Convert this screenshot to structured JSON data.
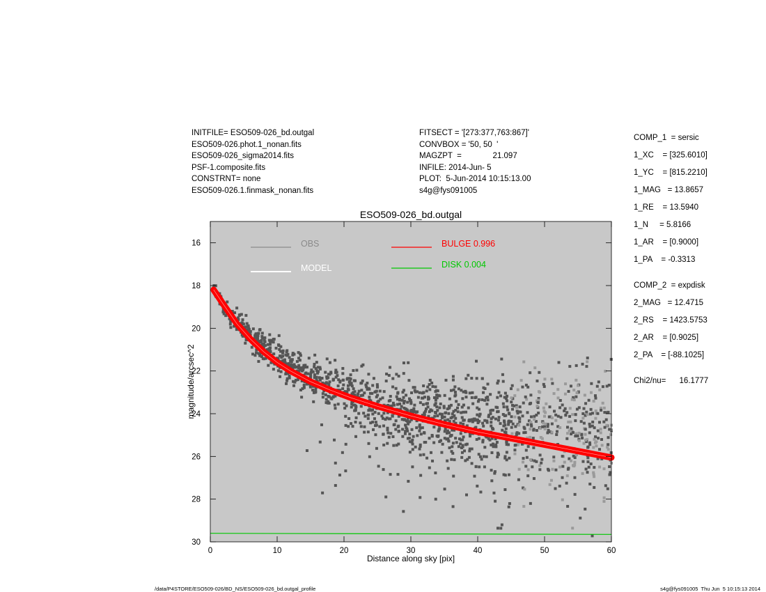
{
  "header_left": [
    "INITFILE= ESO509-026_bd.outgal",
    "ESO509-026.phot.1_nonan.fits",
    "ESO509-026_sigma2014.fits",
    "PSF-1.composite.fits",
    "CONSTRNT= none",
    "ESO509-026.1.finmask_nonan.fits"
  ],
  "header_mid": [
    "FITSECT = '[273:377,763:867]'",
    "CONVBOX = '50, 50  '",
    "MAGZPT  =              21.097",
    "INFILE: 2014-Jun- 5",
    "PLOT:  5-Jun-2014 10:15:13.00",
    "s4g@fys091005"
  ],
  "components": [
    "COMP_1  = sersic",
    "1_XC    = [325.6010]",
    "1_YC    = [815.2210]",
    "1_MAG   = 13.8657",
    "1_RE    = 13.5940",
    "1_N     = 5.8166",
    "1_AR    = [0.9000]",
    "1_PA    = -0.3313",
    "COMP_2  = expdisk",
    "2_MAG   = 12.4715",
    "2_RS    = 1423.5753",
    "2_AR    = [0.9025]",
    "2_PA    = [-88.1025]",
    "Chi2/nu=      16.1777"
  ],
  "footer": {
    "left": "/data/P4STORE/ESO509-026/BD_NS/ESO509-026_bd.outgal_profile",
    "right": "s4g@fys091005  Thu Jun  5 10:15:13 2014"
  },
  "colors": {
    "plot_bg": "#c8c8c8",
    "obs": "#555555",
    "obs_faint": "#9a9a9a",
    "model": "#ffffff",
    "bulge": "#ff0000",
    "disk": "#00c800"
  },
  "chart_data": {
    "type": "scatter",
    "title": "ESO509-026_bd.outgal",
    "xlabel": "Distance along sky [pix]",
    "ylabel": "magnitude/arcsec^2",
    "xlim": [
      0,
      60
    ],
    "ylim": [
      30,
      15
    ],
    "y_inverted": true,
    "x_ticks": [
      0,
      10,
      20,
      30,
      40,
      50,
      60
    ],
    "y_ticks": [
      16,
      18,
      20,
      22,
      24,
      26,
      28,
      30
    ],
    "legend": [
      {
        "label": "OBS",
        "color": "#8a8a8a"
      },
      {
        "label": "MODEL",
        "color": "#ffffff"
      },
      {
        "label": "BULGE  0.996",
        "color": "#ff0000"
      },
      {
        "label": "DISK  0.004",
        "color": "#00c800"
      }
    ],
    "series": [
      {
        "name": "BULGE",
        "type": "line",
        "x": [
          0.5,
          2,
          4,
          6,
          8,
          10,
          12,
          15,
          18,
          21,
          25,
          30,
          35,
          40,
          45,
          50,
          55,
          60
        ],
        "values": [
          18.2,
          18.9,
          19.8,
          20.5,
          21.1,
          21.6,
          22.0,
          22.5,
          22.9,
          23.25,
          23.65,
          24.1,
          24.5,
          24.85,
          25.15,
          25.45,
          25.75,
          26.05
        ]
      },
      {
        "name": "DISK",
        "type": "line",
        "x": [
          0,
          60
        ],
        "values": [
          29.6,
          29.65
        ]
      },
      {
        "name": "OBS",
        "type": "scatter",
        "x": [
          0.5,
          1.0,
          1.5,
          2.0,
          2.5,
          3.0,
          3.5,
          4.0,
          4.5,
          5.0,
          5.5,
          6.0,
          6.5,
          7.0,
          7.5,
          8.0,
          8.5,
          9.0,
          9.5,
          10.0,
          11.0,
          12.0,
          13.0,
          14.0,
          15.0,
          16.0,
          17.0,
          18.0,
          19.0,
          20.0,
          22.0,
          24.0,
          26.0,
          28.0,
          30.0,
          32.0,
          34.0,
          36.0,
          38.0,
          40.0,
          42.0,
          44.0,
          46.0,
          48.0,
          50.0,
          52.0,
          54.0,
          56.0,
          58.0,
          60.0
        ],
        "values": [
          18.1,
          18.5,
          18.7,
          19.0,
          19.3,
          19.4,
          19.6,
          19.7,
          19.9,
          20.0,
          20.2,
          20.3,
          20.5,
          20.6,
          20.8,
          20.9,
          21.0,
          21.1,
          21.2,
          21.4,
          21.6,
          21.8,
          22.0,
          22.2,
          22.3,
          22.5,
          22.6,
          22.8,
          22.9,
          23.0,
          23.2,
          23.4,
          23.6,
          23.8,
          23.9,
          24.0,
          24.1,
          24.2,
          24.3,
          24.3,
          24.4,
          24.4,
          24.5,
          24.5,
          24.6,
          24.6,
          24.7,
          24.7,
          24.8,
          24.8
        ]
      }
    ]
  }
}
